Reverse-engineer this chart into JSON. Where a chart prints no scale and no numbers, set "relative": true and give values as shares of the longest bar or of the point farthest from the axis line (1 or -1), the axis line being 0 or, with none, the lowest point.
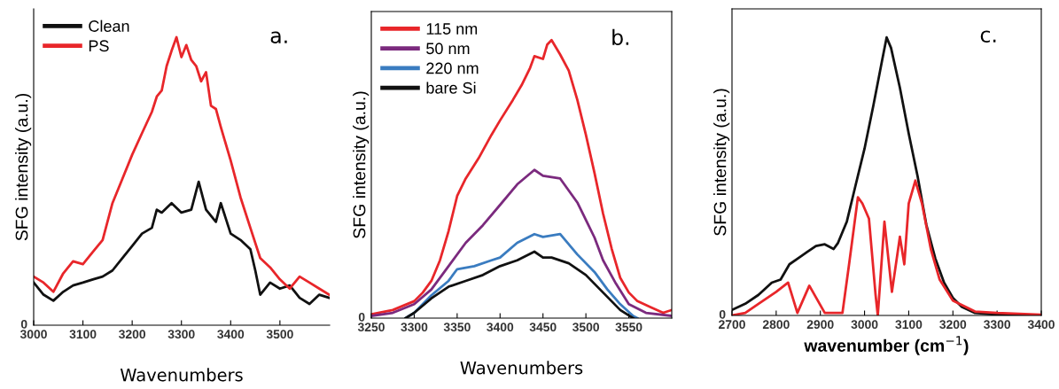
{
  "chart_data": [
    {
      "type": "line",
      "relative": true,
      "ylabel": "SFG intensity (a.u.)",
      "xlabel": "Wavenumbers",
      "annotations": [
        "a.",
        "0"
      ],
      "legend": "top left",
      "xlim": [
        3000,
        3601
      ],
      "xticks": [
        3000,
        3100,
        3200,
        3300,
        3400,
        3500
      ],
      "series": [
        {
          "name": "Clean",
          "color": "#111111",
          "x": [
            3000,
            3020,
            3040,
            3060,
            3080,
            3100,
            3120,
            3140,
            3160,
            3180,
            3200,
            3220,
            3240,
            3250,
            3260,
            3280,
            3300,
            3320,
            3335,
            3350,
            3370,
            3380,
            3400,
            3420,
            3440,
            3450,
            3460,
            3480,
            3500,
            3520,
            3540,
            3560,
            3580,
            3600
          ],
          "values": [
            0.148,
            0.106,
            0.085,
            0.116,
            0.138,
            0.148,
            0.159,
            0.169,
            0.19,
            0.233,
            0.275,
            0.318,
            0.338,
            0.401,
            0.391,
            0.424,
            0.391,
            0.401,
            0.498,
            0.401,
            0.359,
            0.424,
            0.318,
            0.296,
            0.264,
            0.19,
            0.106,
            0.148,
            0.127,
            0.138,
            0.095,
            0.074,
            0.106,
            0.095
          ]
        },
        {
          "name": "PS",
          "color": "#e8262a",
          "x": [
            3000,
            3020,
            3040,
            3060,
            3080,
            3100,
            3120,
            3140,
            3160,
            3180,
            3200,
            3220,
            3240,
            3250,
            3260,
            3270,
            3280,
            3290,
            3300,
            3310,
            3320,
            3330,
            3340,
            3350,
            3360,
            3370,
            3380,
            3400,
            3420,
            3440,
            3460,
            3480,
            3500,
            3520,
            3540,
            3560,
            3580,
            3600
          ],
          "values": [
            0.169,
            0.148,
            0.116,
            0.18,
            0.222,
            0.212,
            0.254,
            0.296,
            0.424,
            0.508,
            0.592,
            0.667,
            0.741,
            0.794,
            0.815,
            0.9,
            0.953,
            1.0,
            0.931,
            0.973,
            0.921,
            0.9,
            0.847,
            0.879,
            0.762,
            0.751,
            0.688,
            0.572,
            0.444,
            0.338,
            0.233,
            0.201,
            0.159,
            0.127,
            0.169,
            0.148,
            0.127,
            0.106
          ]
        }
      ]
    },
    {
      "type": "line",
      "relative": true,
      "ylabel": "SFG intensity (a.u.)",
      "xlabel": "Wavenumbers",
      "annotations": [
        "b.",
        "0"
      ],
      "legend": "top left",
      "xlim": [
        3250,
        3600
      ],
      "xticks": [
        3250,
        3300,
        3350,
        3400,
        3450,
        3500,
        3550
      ],
      "series": [
        {
          "name": "115 nm",
          "color": "#e8262a",
          "x": [
            3250,
            3275,
            3300,
            3310,
            3320,
            3330,
            3340,
            3350,
            3360,
            3375,
            3390,
            3400,
            3415,
            3425,
            3435,
            3440,
            3450,
            3455,
            3460,
            3470,
            3480,
            3490,
            3500,
            3510,
            3520,
            3530,
            3540,
            3550,
            3560,
            3575,
            3590,
            3600
          ],
          "values": [
            0.014,
            0.029,
            0.061,
            0.092,
            0.134,
            0.208,
            0.313,
            0.439,
            0.502,
            0.575,
            0.659,
            0.711,
            0.785,
            0.837,
            0.9,
            0.942,
            0.932,
            0.984,
            1.0,
            0.948,
            0.89,
            0.785,
            0.659,
            0.522,
            0.376,
            0.25,
            0.145,
            0.092,
            0.061,
            0.04,
            0.019,
            0.029
          ]
        },
        {
          "name": "50 nm",
          "color": "#7b2a7e",
          "x": [
            3250,
            3275,
            3300,
            3320,
            3340,
            3360,
            3380,
            3400,
            3420,
            3440,
            3450,
            3470,
            3490,
            3510,
            3520,
            3535,
            3550,
            3570,
            3600
          ],
          "values": [
            0.008,
            0.019,
            0.05,
            0.103,
            0.187,
            0.271,
            0.334,
            0.407,
            0.481,
            0.533,
            0.512,
            0.502,
            0.416,
            0.29,
            0.208,
            0.124,
            0.05,
            0.019,
            0.008
          ]
        },
        {
          "name": "220 nm",
          "color": "#3a7cc0",
          "x": [
            3290,
            3300,
            3320,
            3340,
            3350,
            3370,
            3390,
            3400,
            3420,
            3440,
            3450,
            3470,
            3490,
            3510,
            3525,
            3540,
            3555,
            3560
          ],
          "values": [
            0,
            0.019,
            0.082,
            0.134,
            0.176,
            0.187,
            0.208,
            0.218,
            0.271,
            0.302,
            0.292,
            0.302,
            0.229,
            0.166,
            0.103,
            0.05,
            0.008,
            0
          ]
        },
        {
          "name": "bare Si",
          "color": "#111111",
          "x": [
            3290,
            3300,
            3320,
            3340,
            3360,
            3380,
            3400,
            3420,
            3440,
            3450,
            3460,
            3480,
            3500,
            3520,
            3540,
            3555
          ],
          "values": [
            0,
            0.019,
            0.071,
            0.113,
            0.134,
            0.155,
            0.187,
            0.208,
            0.239,
            0.218,
            0.218,
            0.197,
            0.155,
            0.092,
            0.029,
            0
          ]
        }
      ]
    },
    {
      "type": "line",
      "relative": true,
      "ylabel": "SFG intensity (a.u.)",
      "xlabel": "wavenumber (cm$^{−1}$)",
      "annotations": [
        "c.",
        "0"
      ],
      "xlim": [
        2700,
        3400
      ],
      "xticks": [
        2700,
        2800,
        2900,
        3000,
        3100,
        3200,
        3300,
        3400
      ],
      "series": [
        {
          "color": "#111111",
          "x": [
            2700,
            2730,
            2760,
            2790,
            2810,
            2830,
            2850,
            2870,
            2890,
            2910,
            2930,
            2940,
            2960,
            2980,
            3000,
            3020,
            3040,
            3050,
            3060,
            3080,
            3100,
            3120,
            3140,
            3160,
            3180,
            3200,
            3220,
            3250,
            3300,
            3400
          ],
          "values": [
            0.02,
            0.042,
            0.074,
            0.118,
            0.129,
            0.184,
            0.206,
            0.228,
            0.25,
            0.256,
            0.239,
            0.261,
            0.338,
            0.47,
            0.6,
            0.755,
            0.919,
            1.0,
            0.962,
            0.819,
            0.654,
            0.501,
            0.325,
            0.206,
            0.118,
            0.063,
            0.031,
            0.009,
            0.003,
            0
          ]
        },
        {
          "color": "#e8262a",
          "x": [
            2700,
            2730,
            2760,
            2800,
            2827,
            2848,
            2875,
            2910,
            2950,
            2965,
            2985,
            2995,
            3010,
            3025,
            3030,
            3045,
            3062,
            3080,
            3090,
            3100,
            3115,
            3130,
            3150,
            3170,
            3200,
            3250,
            3300,
            3400
          ],
          "values": [
            0,
            0.009,
            0.042,
            0.085,
            0.118,
            0.009,
            0.107,
            0.009,
            0.009,
            0.184,
            0.425,
            0.403,
            0.348,
            0.074,
            0,
            0.337,
            0.085,
            0.283,
            0.184,
            0.403,
            0.485,
            0.403,
            0.239,
            0.129,
            0.053,
            0.014,
            0.009,
            0.003
          ]
        }
      ]
    }
  ]
}
